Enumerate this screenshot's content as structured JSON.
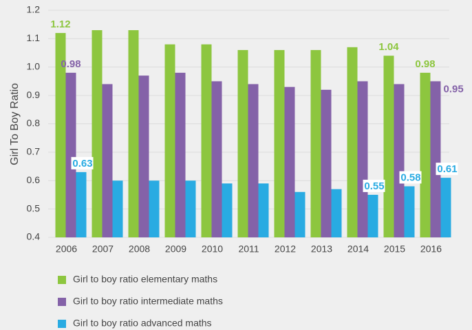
{
  "chart_data": {
    "type": "bar",
    "y_label": "Girl To Boy Ratio",
    "categories": [
      "2006",
      "2007",
      "2008",
      "2009",
      "2010",
      "2011",
      "2012",
      "2013",
      "2014",
      "2015",
      "2016"
    ],
    "series": [
      {
        "name": "Girl to boy ratio elementary maths",
        "color": "#8dc63f",
        "values": [
          1.12,
          1.13,
          1.13,
          1.08,
          1.08,
          1.06,
          1.06,
          1.06,
          1.07,
          1.04,
          0.98
        ],
        "value_labels": [
          "1.12",
          null,
          null,
          null,
          null,
          null,
          null,
          null,
          null,
          "1.04",
          "0.98"
        ]
      },
      {
        "name": "Girl to boy ratio intermediate maths",
        "color": "#8462a8",
        "values": [
          0.98,
          0.94,
          0.97,
          0.98,
          0.95,
          0.94,
          0.93,
          0.92,
          0.95,
          0.94,
          0.95
        ],
        "value_labels": [
          "0.98",
          null,
          null,
          null,
          null,
          null,
          null,
          null,
          null,
          null,
          "0.95"
        ]
      },
      {
        "name": "Girl to boy ratio advanced maths",
        "color": "#29abe2",
        "values": [
          0.63,
          0.6,
          0.6,
          0.6,
          0.59,
          0.59,
          0.56,
          0.57,
          0.55,
          0.58,
          0.61
        ],
        "value_labels": [
          "0.63",
          null,
          null,
          null,
          null,
          null,
          null,
          null,
          "0.55",
          "0.58",
          "0.61"
        ]
      }
    ],
    "ylim": [
      0.4,
      1.2
    ],
    "yticks": [
      0.4,
      0.5,
      0.6,
      0.7,
      0.8,
      0.9,
      {
        "value": 1.0,
        "label": "1.0"
      },
      1.1,
      1.2
    ],
    "grid": true
  }
}
